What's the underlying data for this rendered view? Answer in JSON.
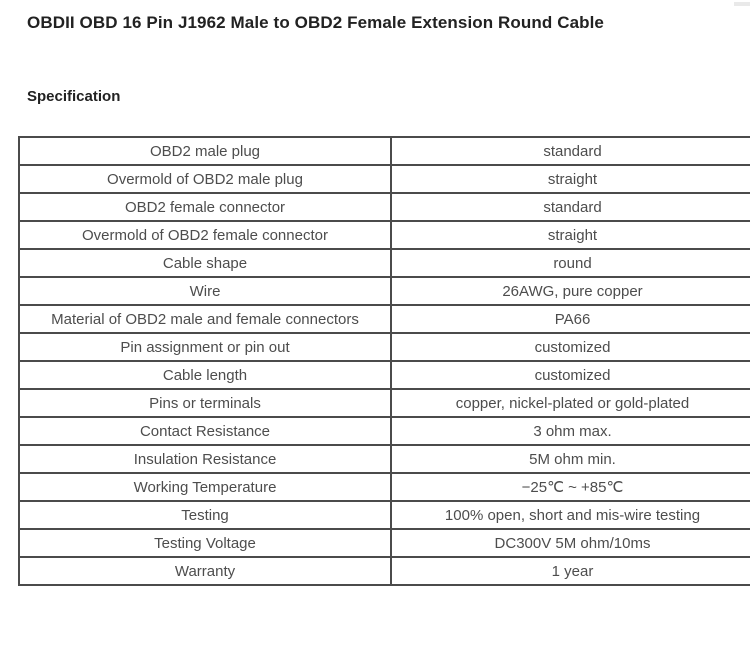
{
  "page": {
    "title": "OBDII OBD 16 Pin J1962 Male to OBD2 Female Extension Round Cable",
    "section_heading": "Specification"
  },
  "spec_table": {
    "rows": [
      {
        "label": "OBD2 male plug",
        "value": "standard"
      },
      {
        "label": "Overmold of OBD2 male plug",
        "value": "straight"
      },
      {
        "label": "OBD2 female connector",
        "value": "standard"
      },
      {
        "label": "Overmold of OBD2 female connector",
        "value": "straight"
      },
      {
        "label": "Cable shape",
        "value": "round"
      },
      {
        "label": "Wire",
        "value": "26AWG, pure copper"
      },
      {
        "label": "Material of OBD2 male and female connectors",
        "value": "PA66"
      },
      {
        "label": "Pin assignment or pin out",
        "value": "customized"
      },
      {
        "label": "Cable length",
        "value": "customized"
      },
      {
        "label": "Pins or terminals",
        "value": "copper, nickel-plated or gold-plated"
      },
      {
        "label": "Contact Resistance",
        "value": "3 ohm max."
      },
      {
        "label": "Insulation Resistance",
        "value": "5M ohm min."
      },
      {
        "label": "Working Temperature",
        "value": "−25℃ ~ +85℃"
      },
      {
        "label": "Testing",
        "value": "100% open, short and mis-wire testing"
      },
      {
        "label": "Testing Voltage",
        "value": "DC300V 5M ohm/10ms"
      },
      {
        "label": "Warranty",
        "value": "1 year"
      }
    ]
  },
  "colors": {
    "border": "#4b4b4b",
    "cell_text": "#4d4d4d",
    "title_text": "#222222",
    "background": "#ffffff",
    "scrollbar_fragment": "#e9e9e9"
  }
}
